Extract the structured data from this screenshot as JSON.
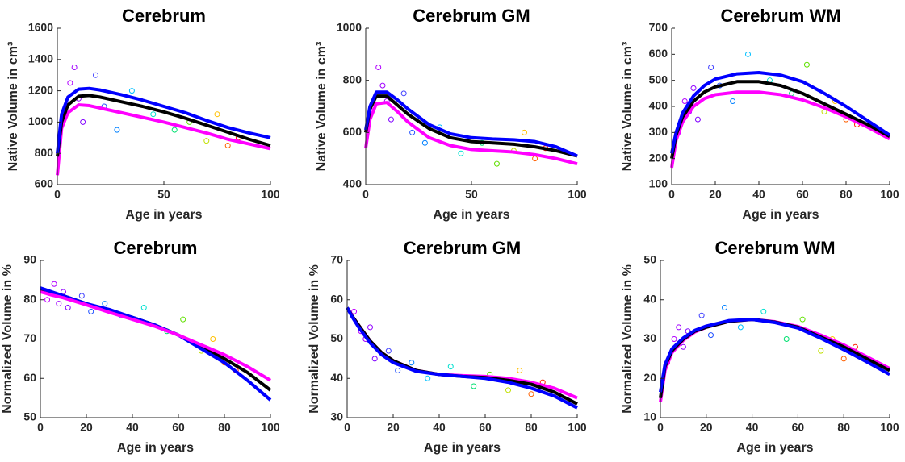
{
  "chart_data": [
    {
      "type": "line",
      "title": "Cerebrum",
      "xlabel": "Age in years",
      "ylabel": "Native Volume in cm³",
      "x": [
        0,
        2,
        5,
        10,
        15,
        20,
        30,
        40,
        50,
        60,
        70,
        80,
        90,
        100
      ],
      "series": [
        {
          "color": "#ff00ff",
          "values": [
            660,
            960,
            1060,
            1110,
            1105,
            1090,
            1060,
            1030,
            1000,
            965,
            930,
            890,
            860,
            830
          ]
        },
        {
          "color": "#000000",
          "values": [
            780,
            1000,
            1110,
            1165,
            1170,
            1160,
            1130,
            1100,
            1065,
            1025,
            980,
            935,
            890,
            850
          ]
        },
        {
          "color": "#0000ff",
          "values": [
            800,
            1050,
            1160,
            1210,
            1215,
            1205,
            1175,
            1140,
            1100,
            1060,
            1010,
            965,
            930,
            900
          ]
        }
      ],
      "scatter": {
        "x": [
          3,
          6,
          8,
          10,
          12,
          18,
          22,
          28,
          35,
          45,
          55,
          62,
          70,
          75,
          80,
          85
        ],
        "y": [
          1050,
          1250,
          1350,
          1150,
          1000,
          1300,
          1100,
          950,
          1200,
          1050,
          950,
          1000,
          880,
          1050,
          850,
          900
        ],
        "colors": [
          "#c000ff",
          "#b000ff",
          "#a000ff",
          "#9000ff",
          "#8000ff",
          "#4040ff",
          "#2050ff",
          "#0080ff",
          "#00c0ff",
          "#00e0d0",
          "#00e070",
          "#60e000",
          "#c0e000",
          "#ffc000",
          "#ff6000",
          "#ff2000"
        ]
      },
      "xlim": [
        0,
        100
      ],
      "xticks": [
        0,
        50,
        100
      ],
      "ylim": [
        600,
        1600
      ],
      "yticks": [
        600,
        800,
        1000,
        1200,
        1400,
        1600
      ]
    },
    {
      "type": "line",
      "title": "Cerebrum GM",
      "xlabel": "Age in years",
      "ylabel": "Native Volume in cm³",
      "x": [
        0,
        2,
        5,
        10,
        15,
        20,
        30,
        40,
        50,
        60,
        70,
        80,
        90,
        100
      ],
      "series": [
        {
          "color": "#ff00ff",
          "values": [
            540,
            650,
            710,
            715,
            680,
            640,
            580,
            550,
            535,
            530,
            525,
            515,
            500,
            480
          ]
        },
        {
          "color": "#000000",
          "values": [
            600,
            690,
            740,
            740,
            705,
            670,
            615,
            580,
            565,
            560,
            555,
            545,
            530,
            510
          ]
        },
        {
          "color": "#0000ff",
          "values": [
            610,
            700,
            755,
            755,
            725,
            690,
            630,
            595,
            580,
            575,
            572,
            565,
            545,
            510
          ]
        }
      ],
      "scatter": {
        "x": [
          3,
          6,
          8,
          10,
          12,
          18,
          22,
          28,
          35,
          45,
          55,
          62,
          70,
          75,
          80,
          85
        ],
        "y": [
          700,
          850,
          780,
          720,
          650,
          750,
          600,
          560,
          620,
          520,
          560,
          480,
          530,
          600,
          500,
          540
        ],
        "colors": [
          "#c000ff",
          "#b000ff",
          "#a000ff",
          "#9000ff",
          "#8000ff",
          "#4040ff",
          "#2050ff",
          "#0080ff",
          "#00c0ff",
          "#00e0d0",
          "#00e070",
          "#60e000",
          "#c0e000",
          "#ffc000",
          "#ff6000",
          "#ff2000"
        ]
      },
      "xlim": [
        0,
        100
      ],
      "xticks": [
        0,
        50,
        100
      ],
      "ylim": [
        400,
        1000
      ],
      "yticks": [
        400,
        600,
        800,
        1000
      ]
    },
    {
      "type": "line",
      "title": "Cerebrum WM",
      "xlabel": "Age in years",
      "ylabel": "Native Volume in cm³",
      "x": [
        0,
        2,
        5,
        10,
        15,
        20,
        30,
        40,
        50,
        60,
        70,
        80,
        90,
        100
      ],
      "series": [
        {
          "color": "#ff00ff",
          "values": [
            165,
            270,
            340,
            400,
            430,
            445,
            455,
            455,
            445,
            425,
            395,
            360,
            320,
            275
          ]
        },
        {
          "color": "#000000",
          "values": [
            200,
            290,
            360,
            420,
            455,
            475,
            495,
            495,
            480,
            450,
            410,
            370,
            330,
            285
          ]
        },
        {
          "color": "#0000ff",
          "values": [
            220,
            300,
            375,
            440,
            480,
            505,
            525,
            530,
            520,
            495,
            450,
            400,
            345,
            290
          ]
        }
      ],
      "scatter": {
        "x": [
          3,
          6,
          8,
          10,
          12,
          18,
          22,
          28,
          35,
          45,
          55,
          62,
          70,
          75,
          80,
          85
        ],
        "y": [
          300,
          420,
          380,
          470,
          350,
          550,
          480,
          420,
          600,
          500,
          450,
          560,
          380,
          420,
          350,
          330
        ],
        "colors": [
          "#c000ff",
          "#b000ff",
          "#a000ff",
          "#9000ff",
          "#8000ff",
          "#4040ff",
          "#2050ff",
          "#0080ff",
          "#00c0ff",
          "#00e0d0",
          "#00e070",
          "#60e000",
          "#c0e000",
          "#ffc000",
          "#ff6000",
          "#ff2000"
        ]
      },
      "xlim": [
        0,
        100
      ],
      "xticks": [
        0,
        20,
        40,
        60,
        80,
        100
      ],
      "ylim": [
        100,
        700
      ],
      "yticks": [
        100,
        200,
        300,
        400,
        500,
        600,
        700
      ]
    },
    {
      "type": "line",
      "title": "Cerebrum",
      "xlabel": "Age in years",
      "ylabel": "Normalized Volume in %",
      "x": [
        0,
        2,
        5,
        10,
        15,
        20,
        30,
        40,
        50,
        60,
        70,
        80,
        90,
        100
      ],
      "series": [
        {
          "color": "#000000",
          "values": [
            82.5,
            82.2,
            81.7,
            81,
            80,
            79,
            77,
            75.5,
            73.5,
            71,
            68,
            65,
            61.5,
            57
          ]
        },
        {
          "color": "#0000ff",
          "values": [
            83,
            82.6,
            82,
            81,
            80,
            79,
            77.5,
            75.5,
            73.5,
            71,
            67.5,
            64,
            59.5,
            54.5
          ]
        },
        {
          "color": "#ff00ff",
          "values": [
            82,
            81.7,
            81.2,
            80.5,
            79.6,
            78.7,
            76.8,
            75,
            73.2,
            71,
            68.5,
            66,
            63,
            59.5
          ]
        }
      ],
      "scatter": {
        "x": [
          3,
          6,
          8,
          10,
          12,
          18,
          22,
          28,
          35,
          45,
          55,
          62,
          70,
          75,
          80,
          85
        ],
        "y": [
          80,
          84,
          79,
          82,
          78,
          81,
          77,
          79,
          76,
          78,
          72,
          75,
          67,
          70,
          64,
          62
        ],
        "colors": [
          "#c000ff",
          "#b000ff",
          "#a000ff",
          "#9000ff",
          "#8000ff",
          "#4040ff",
          "#2050ff",
          "#0080ff",
          "#00c0ff",
          "#00e0d0",
          "#00e070",
          "#60e000",
          "#c0e000",
          "#ffc000",
          "#ff6000",
          "#ff2000"
        ]
      },
      "xlim": [
        0,
        100
      ],
      "xticks": [
        0,
        20,
        40,
        60,
        80,
        100
      ],
      "ylim": [
        50,
        90
      ],
      "yticks": [
        50,
        60,
        70,
        80,
        90
      ]
    },
    {
      "type": "line",
      "title": "Cerebrum GM",
      "xlabel": "Age in years",
      "ylabel": "Normalized Volume in %",
      "x": [
        0,
        2,
        5,
        10,
        15,
        20,
        30,
        40,
        50,
        60,
        70,
        80,
        90,
        100
      ],
      "series": [
        {
          "color": "#ff00ff",
          "values": [
            58,
            56,
            53.5,
            49.5,
            46.5,
            44.5,
            42,
            41,
            40.7,
            40.5,
            40,
            39,
            37.5,
            35
          ]
        },
        {
          "color": "#000000",
          "values": [
            58,
            56,
            53.5,
            49.5,
            46.5,
            44.5,
            42,
            41,
            40.5,
            40.2,
            39.5,
            38.5,
            36.5,
            33.5
          ]
        },
        {
          "color": "#0000ff",
          "values": [
            58,
            55.8,
            53,
            49,
            46,
            44,
            41.8,
            41,
            40.5,
            40,
            39,
            37.5,
            35.5,
            32.5
          ]
        }
      ],
      "scatter": {
        "x": [
          3,
          6,
          8,
          10,
          12,
          18,
          22,
          28,
          35,
          45,
          55,
          62,
          70,
          75,
          80,
          85
        ],
        "y": [
          57,
          52,
          50,
          53,
          45,
          47,
          42,
          44,
          40,
          43,
          38,
          41,
          37,
          42,
          36,
          39
        ],
        "colors": [
          "#c000ff",
          "#b000ff",
          "#a000ff",
          "#9000ff",
          "#8000ff",
          "#4040ff",
          "#2050ff",
          "#0080ff",
          "#00c0ff",
          "#00e0d0",
          "#00e070",
          "#60e000",
          "#c0e000",
          "#ffc000",
          "#ff6000",
          "#ff2000"
        ]
      },
      "xlim": [
        0,
        100
      ],
      "xticks": [
        0,
        20,
        40,
        60,
        80,
        100
      ],
      "ylim": [
        30,
        70
      ],
      "yticks": [
        30,
        40,
        50,
        60,
        70
      ]
    },
    {
      "type": "line",
      "title": "Cerebrum WM",
      "xlabel": "Age in years",
      "ylabel": "Normalized Volume in %",
      "x": [
        0,
        2,
        5,
        10,
        15,
        20,
        30,
        40,
        50,
        60,
        70,
        80,
        90,
        100
      ],
      "series": [
        {
          "color": "#ff00ff",
          "values": [
            14,
            22,
            26.5,
            29.7,
            31.8,
            33,
            34.5,
            35,
            34.4,
            33.2,
            31,
            28.5,
            25.5,
            22.5
          ]
        },
        {
          "color": "#000000",
          "values": [
            15,
            23,
            27,
            30,
            32,
            33,
            34.5,
            35,
            34.3,
            33,
            30.5,
            28,
            25,
            22
          ]
        },
        {
          "color": "#0000ff",
          "values": [
            16.5,
            23.5,
            27.5,
            30.3,
            32.2,
            33.3,
            34.7,
            35,
            34.2,
            32.8,
            30.2,
            27.3,
            24.2,
            21
          ]
        }
      ],
      "scatter": {
        "x": [
          3,
          6,
          8,
          10,
          12,
          18,
          22,
          28,
          35,
          45,
          55,
          62,
          70,
          75,
          80,
          85
        ],
        "y": [
          24,
          30,
          33,
          28,
          32,
          36,
          31,
          38,
          33,
          37,
          30,
          35,
          27,
          30,
          25,
          28
        ],
        "colors": [
          "#c000ff",
          "#b000ff",
          "#a000ff",
          "#9000ff",
          "#8000ff",
          "#4040ff",
          "#2050ff",
          "#0080ff",
          "#00c0ff",
          "#00e0d0",
          "#00e070",
          "#60e000",
          "#c0e000",
          "#ffc000",
          "#ff6000",
          "#ff2000"
        ]
      },
      "xlim": [
        0,
        100
      ],
      "xticks": [
        0,
        20,
        40,
        60,
        80,
        100
      ],
      "ylim": [
        10,
        50
      ],
      "yticks": [
        10,
        20,
        30,
        40,
        50
      ]
    }
  ]
}
